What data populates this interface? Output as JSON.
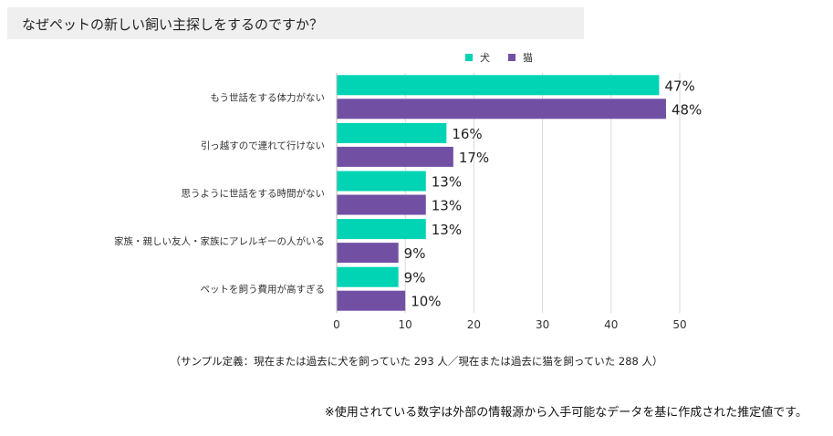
{
  "title": "なぜペットの新しい飼い主探しをするのですか？",
  "colors": {
    "dog": "#00d4b4",
    "cat": "#7150a4",
    "grid": "#d9d9d9",
    "title_bg": "#efefef"
  },
  "chart_data": {
    "type": "bar",
    "orientation": "horizontal",
    "categories": [
      "もう世話をする体力がない",
      "引っ越すので連れて行けない",
      "思うように世話をする時間がない",
      "家族・親しい友人・家族にアレルギーの人がいる",
      "ペットを飼う費用が高すぎる"
    ],
    "series": [
      {
        "name": "犬",
        "color": "#00d4b4",
        "values": [
          47,
          16,
          13,
          13,
          9
        ]
      },
      {
        "name": "猫",
        "color": "#7150a4",
        "values": [
          48,
          17,
          13,
          9,
          10
        ]
      }
    ],
    "value_suffix": "%",
    "xlim": [
      0,
      50
    ],
    "xticks": [
      0,
      10,
      20,
      30,
      40,
      50
    ],
    "grid": true,
    "legend": "top"
  },
  "notes": {
    "sample": "（サンプル定義：現在または過去に犬を飼っていた 293 人／現在または過去に猫を飼っていた 288 人）",
    "disclaimer": "※使用されている数字は外部の情報源から入手可能なデータを基に作成された推定値です。"
  }
}
